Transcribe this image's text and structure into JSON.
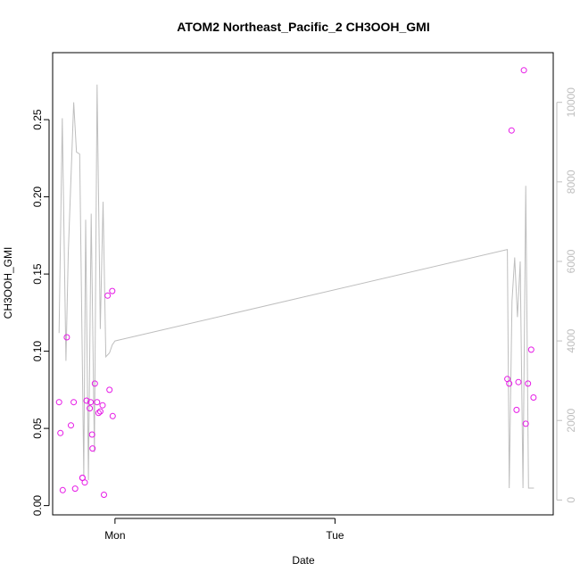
{
  "chart_data": {
    "type": "scatter",
    "title": "ATOM2 Northeast_Pacific_2 CH3OOH_GMI",
    "xlabel": "Date",
    "ylabel": "CH3OOH_GMI",
    "x_tick_labels": [
      "Mon",
      "Tue"
    ],
    "x_tick_values": [
      0,
      24
    ],
    "xlim": [
      -6.8,
      47.8
    ],
    "ylim": [
      -0.006,
      0.2934
    ],
    "y_ticks": [
      0.0,
      0.05,
      0.1,
      0.15,
      0.2,
      0.25
    ],
    "y_tick_labels": [
      "0.00",
      "0.05",
      "0.10",
      "0.15",
      "0.20",
      "0.25"
    ],
    "y2lim": [
      -374,
      11250
    ],
    "y2_ticks": [
      0,
      2000,
      4000,
      6000,
      8000,
      10000
    ],
    "y2_tick_labels": [
      "0",
      "2000",
      "4000",
      "6000",
      "8000",
      "10000"
    ],
    "grid": false,
    "colors": {
      "points": "#e619e6",
      "line": "#bebebe",
      "axis": "#000000",
      "right_axis": "#bebebe"
    },
    "series": [
      {
        "marker": "circle-open",
        "axis": "left",
        "x": [
          -6.1,
          -5.95,
          -5.7,
          -5.25,
          -4.8,
          -4.5,
          -4.35,
          -3.55,
          -3.55,
          -3.3,
          -3.1,
          -2.75,
          -2.65,
          -2.5,
          -2.45,
          -2.2,
          -1.95,
          -1.8,
          -1.6,
          -1.35,
          -1.2,
          -0.8,
          -0.6,
          -0.3,
          -0.25,
          42.8,
          43.0,
          43.25,
          43.8,
          44.0,
          44.6,
          44.8,
          45.05,
          45.4,
          45.65
        ],
        "y": [
          0.067,
          0.047,
          0.01,
          0.109,
          0.052,
          0.067,
          0.011,
          0.018,
          0.018,
          0.015,
          0.068,
          0.063,
          0.067,
          0.046,
          0.037,
          0.079,
          0.067,
          0.06,
          0.061,
          0.065,
          0.007,
          0.136,
          0.075,
          0.139,
          0.058,
          0.082,
          0.079,
          0.243,
          0.062,
          0.08,
          0.282,
          0.053,
          0.079,
          0.101,
          0.07
        ]
      },
      {
        "marker": "line",
        "axis": "right",
        "x": [
          -6.1,
          -5.75,
          -5.35,
          -5.1,
          -4.5,
          -4.2,
          -3.85,
          -3.4,
          -3.2,
          -2.9,
          -2.6,
          -2.25,
          -1.95,
          -1.6,
          -1.3,
          -1.0,
          -0.6,
          -0.3,
          0.0,
          42.8,
          43.0,
          43.3,
          43.6,
          43.9,
          44.2,
          44.5,
          44.8,
          45.1,
          45.4,
          45.7
        ],
        "y": [
          4200,
          9600,
          3500,
          6200,
          10000,
          8750,
          8700,
          600,
          7050,
          500,
          7200,
          1200,
          10450,
          4300,
          7500,
          3600,
          3700,
          3900,
          4000,
          6300,
          300,
          5000,
          6100,
          4600,
          6000,
          300,
          7900,
          300,
          300,
          300
        ]
      }
    ]
  }
}
